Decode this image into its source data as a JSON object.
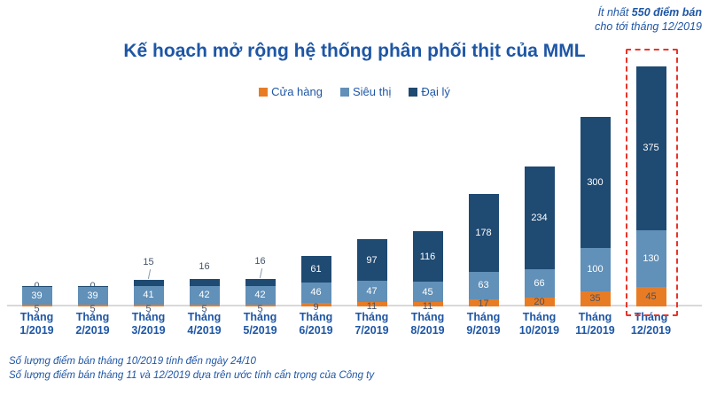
{
  "colors": {
    "accent_blue": "#1E56A5",
    "label_navy": "#44546A",
    "axis_line": "#D9D9D9",
    "highlight_red": "#E8352A",
    "background": "#FFFFFF"
  },
  "annotation": {
    "line1_regular": "Ít nhất ",
    "line1_bold": "550 điểm bán",
    "line2": "cho tới tháng 12/2019"
  },
  "title": "Kế hoạch mở rộng hệ thống phân phối thịt của MML",
  "chart_data": {
    "type": "bar",
    "stacked": true,
    "title": "Kế hoạch mở rộng hệ thống phân phối thịt của MML",
    "categories": [
      "Tháng 1/2019",
      "Tháng 2/2019",
      "Tháng 3/2019",
      "Tháng 4/2019",
      "Tháng 5/2019",
      "Tháng 6/2019",
      "Tháng 7/2019",
      "Tháng 8/2019",
      "Tháng 9/2019",
      "Tháng 10/2019",
      "Tháng 11/2019",
      "Tháng 12/2019"
    ],
    "series": [
      {
        "name": "Cửa hàng",
        "color": "#E87C24",
        "values": [
          5,
          5,
          5,
          5,
          5,
          9,
          11,
          11,
          17,
          20,
          35,
          45
        ]
      },
      {
        "name": "Siêu thị",
        "color": "#6190B8",
        "values": [
          39,
          39,
          41,
          42,
          42,
          46,
          47,
          45,
          63,
          66,
          100,
          130
        ]
      },
      {
        "name": "Đại lý",
        "color": "#1F4A72",
        "values": [
          0,
          0,
          15,
          16,
          16,
          61,
          97,
          116,
          178,
          234,
          300,
          375
        ]
      }
    ],
    "ylim": [
      0,
      550
    ],
    "y_axis_visible": false,
    "gridlines": false,
    "legend_position": "top",
    "data_labels": true,
    "outside_label_threshold": 50,
    "leader_line_bars": [
      2,
      4
    ],
    "highlighted_bar": 11
  },
  "footnotes": [
    "Số lượng điểm bán tháng 10/2019 tính đến ngày 24/10",
    "Số lượng điểm bán tháng 11 và 12/2019 dựa trên ước tính cẩn trọng của Công ty"
  ]
}
